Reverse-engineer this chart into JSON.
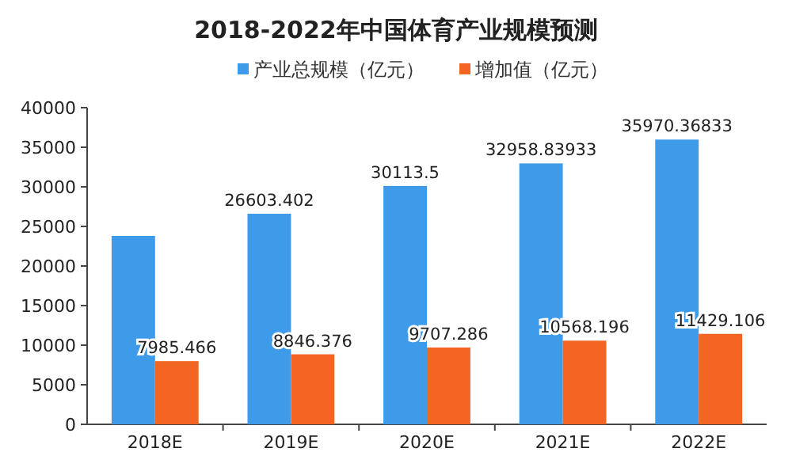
{
  "chart_data": {
    "type": "bar",
    "title": "2018-2022年中国体育产业规模预测",
    "categories": [
      "2018E",
      "2019E",
      "2020E",
      "2021E",
      "2022E"
    ],
    "series": [
      {
        "name": "产业总规模（亿元）",
        "color": "#3d9be9",
        "values": [
          23800,
          26603.402,
          30113.5,
          32958.83933,
          35970.36833
        ],
        "value_labels": [
          null,
          "26603.402",
          "30113.5",
          "32958.83933",
          "35970.36833"
        ]
      },
      {
        "name": "增加值（亿元）",
        "color": "#f26522",
        "values": [
          7985.466,
          8846.376,
          9707.286,
          10568.196,
          11429.106
        ],
        "value_labels": [
          "7985.466",
          "8846.376",
          "9707.286",
          "10568.196",
          "11429.106"
        ]
      }
    ],
    "ylim": [
      0,
      40000
    ],
    "yticks": [
      0,
      5000,
      10000,
      15000,
      20000,
      25000,
      30000,
      35000,
      40000
    ],
    "legend": "top"
  }
}
